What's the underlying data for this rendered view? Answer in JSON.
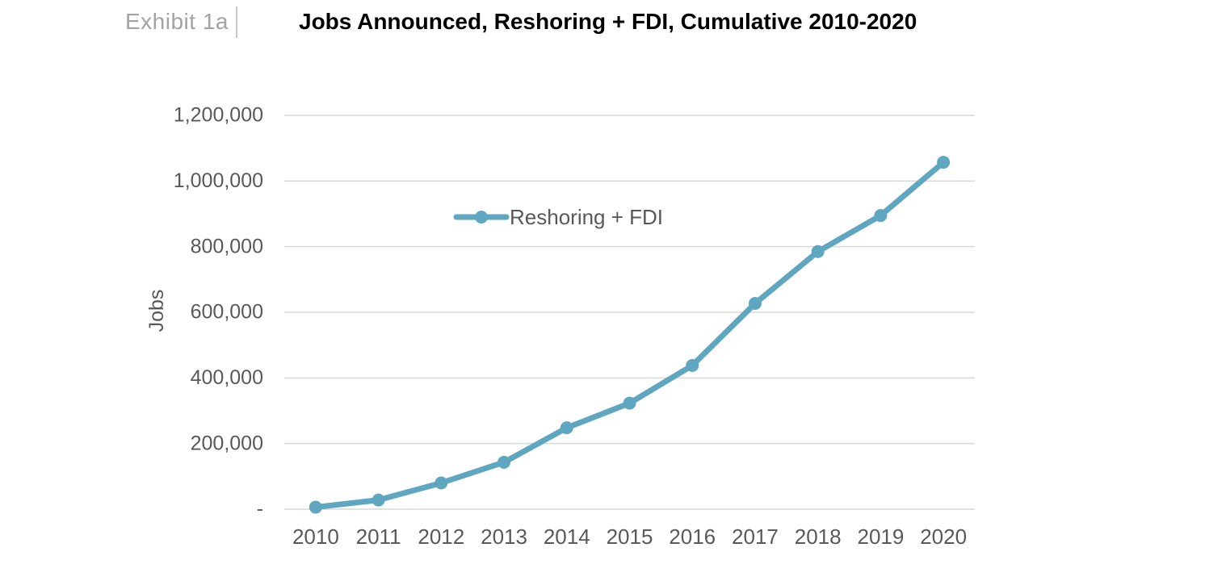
{
  "header": {
    "exhibit_label": "Exhibit 1a",
    "title": "Jobs Announced, Reshoring + FDI, Cumulative 2010-2020"
  },
  "chart_data": {
    "type": "line",
    "title": "Jobs Announced, Reshoring + FDI, Cumulative 2010-2020",
    "xlabel": "",
    "ylabel": "Jobs",
    "categories": [
      "2010",
      "2011",
      "2012",
      "2013",
      "2014",
      "2015",
      "2016",
      "2017",
      "2018",
      "2019",
      "2020"
    ],
    "series": [
      {
        "name": "Reshoring + FDI",
        "values": [
          6000,
          28000,
          80000,
          143000,
          248000,
          323000,
          438000,
          627000,
          785000,
          895000,
          1057000
        ]
      }
    ],
    "ylim": [
      0,
      1200000
    ],
    "ytick_step": 200000,
    "ytick_labels": [
      "-",
      "200,000",
      "400,000",
      "600,000",
      "800,000",
      "1,000,000",
      "1,200,000"
    ],
    "grid": true,
    "legend_position": "inside upper-left of plot",
    "legend_label": "Reshoring + FDI"
  },
  "colors": {
    "line": "#5fa6c0",
    "axis_text": "#595959",
    "gridline": "#d9d9d9",
    "title_text": "#000000",
    "exhibit_text": "#a3a3a3",
    "divider": "#c9c9c9"
  }
}
